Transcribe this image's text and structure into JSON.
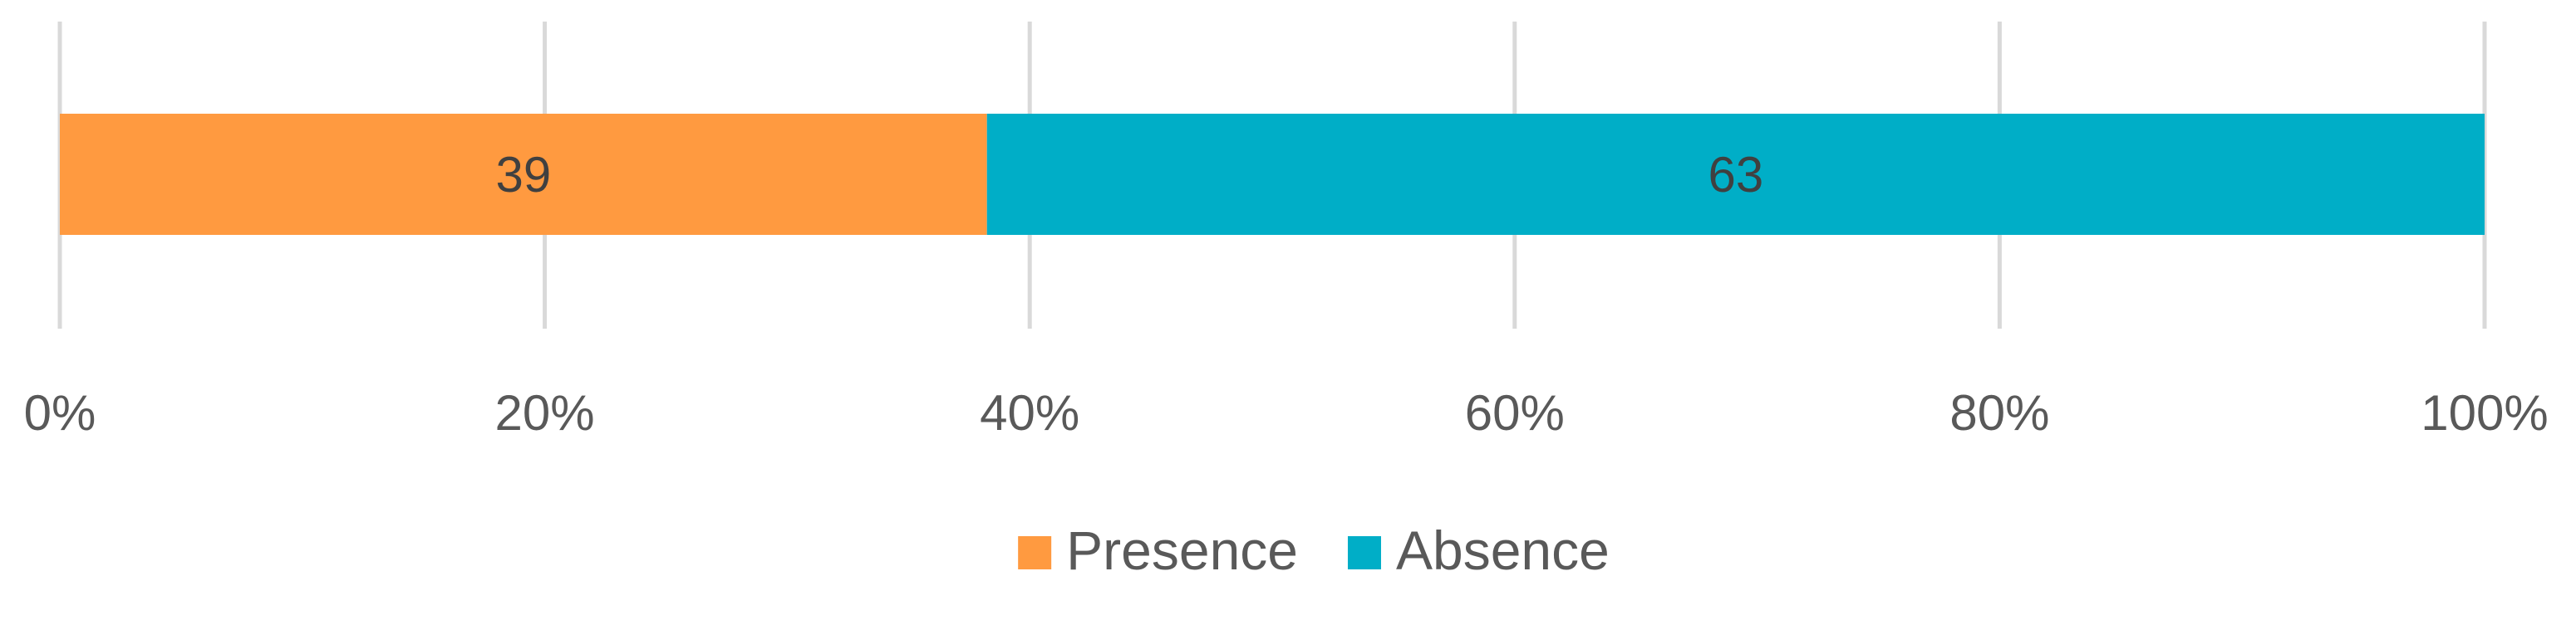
{
  "chart_data": {
    "type": "bar",
    "orientation": "horizontal",
    "stacked": "percent",
    "categories": [
      ""
    ],
    "series": [
      {
        "name": "Presence",
        "values": [
          39
        ],
        "color": "#FF9A40"
      },
      {
        "name": "Absence",
        "values": [
          63
        ],
        "color": "#00AEC7"
      }
    ],
    "xlim": [
      0,
      100
    ],
    "x_ticks": [
      "0%",
      "20%",
      "40%",
      "60%",
      "80%",
      "100%"
    ],
    "x_tick_values": [
      0,
      20,
      40,
      60,
      80,
      100
    ],
    "grid": true,
    "legend_position": "bottom",
    "data_labels": true
  }
}
